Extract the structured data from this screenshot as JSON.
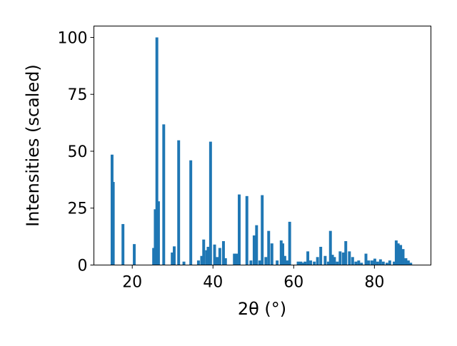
{
  "chart_data": {
    "type": "bar",
    "xlabel": "2θ (°)",
    "ylabel": "Intensities (scaled)",
    "xlim": [
      10.5,
      94
    ],
    "ylim": [
      0,
      105
    ],
    "xticks": [
      20,
      40,
      60,
      80
    ],
    "yticks": [
      0,
      25,
      50,
      75,
      100
    ],
    "xtick_labels": [
      "20",
      "40",
      "60",
      "80"
    ],
    "ytick_labels": [
      "0",
      "25",
      "50",
      "75",
      "100"
    ],
    "bar_width": 0.7,
    "bar_color": "#1f77b4",
    "grid": false,
    "x": [
      15.0,
      15.3,
      17.7,
      20.5,
      25.3,
      25.7,
      26.1,
      26.5,
      27.8,
      29.9,
      30.4,
      31.5,
      32.8,
      34.5,
      36.4,
      37.2,
      37.7,
      38.4,
      38.8,
      39.4,
      40.4,
      41.1,
      41.7,
      42.6,
      43.1,
      45.3,
      45.8,
      46.5,
      48.4,
      49.4,
      50.2,
      50.8,
      51.6,
      52.2,
      53.1,
      53.8,
      54.6,
      55.9,
      56.9,
      57.3,
      57.8,
      58.4,
      59.0,
      61.1,
      61.8,
      62.3,
      62.8,
      63.5,
      64.2,
      65.1,
      65.9,
      66.7,
      67.8,
      68.6,
      69.1,
      69.6,
      70.1,
      70.8,
      71.5,
      72.3,
      72.9,
      73.8,
      74.6,
      75.4,
      76.1,
      76.8,
      77.9,
      78.6,
      79.4,
      80.1,
      80.8,
      81.5,
      82.2,
      83.1,
      83.8,
      84.9,
      85.4,
      85.9,
      86.5,
      87.1,
      87.8,
      88.4,
      89.0
    ],
    "values": [
      48.5,
      36.5,
      18.0,
      9.2,
      7.5,
      24.5,
      100.0,
      28.0,
      61.8,
      5.5,
      8.2,
      54.8,
      1.5,
      46.0,
      2.0,
      4.0,
      11.2,
      6.5,
      8.0,
      54.2,
      9.0,
      3.5,
      7.5,
      10.5,
      3.0,
      5.0,
      5.0,
      31.0,
      30.3,
      2.0,
      13.0,
      17.5,
      2.0,
      30.7,
      3.5,
      15.0,
      9.5,
      2.0,
      10.8,
      9.5,
      4.0,
      2.0,
      19.0,
      1.5,
      1.5,
      1.0,
      1.5,
      6.0,
      2.0,
      1.5,
      3.5,
      8.0,
      4.0,
      1.5,
      15.0,
      4.5,
      3.5,
      1.5,
      6.0,
      5.5,
      10.5,
      6.0,
      3.5,
      1.5,
      2.0,
      1.0,
      5.0,
      2.0,
      2.0,
      2.8,
      1.5,
      2.5,
      1.5,
      1.0,
      2.0,
      1.5,
      10.8,
      9.5,
      8.8,
      7.0,
      3.0,
      2.0,
      1.0
    ]
  }
}
